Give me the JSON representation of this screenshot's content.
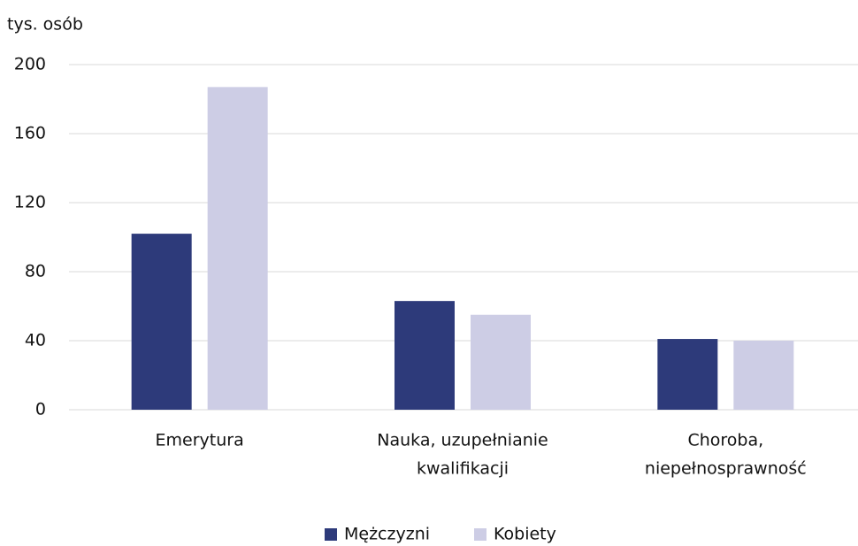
{
  "chart_data": {
    "type": "bar",
    "y_label": "tys. osób",
    "categories": [
      [
        "Emerytura"
      ],
      [
        "Nauka, uzupełnianie",
        "kwalifikacji"
      ],
      [
        "Choroba,",
        "niepełnosprawność"
      ]
    ],
    "series": [
      {
        "name": "Mężczyzni",
        "color": "#2d3a7a",
        "values": [
          102,
          63,
          41
        ]
      },
      {
        "name": "Kobiety",
        "color": "#cdcde5",
        "values": [
          187,
          55,
          40
        ]
      }
    ],
    "ylim": [
      0,
      200
    ],
    "yticks": [
      0,
      40,
      80,
      120,
      160,
      200
    ],
    "grid": true,
    "legend": "bottom"
  }
}
